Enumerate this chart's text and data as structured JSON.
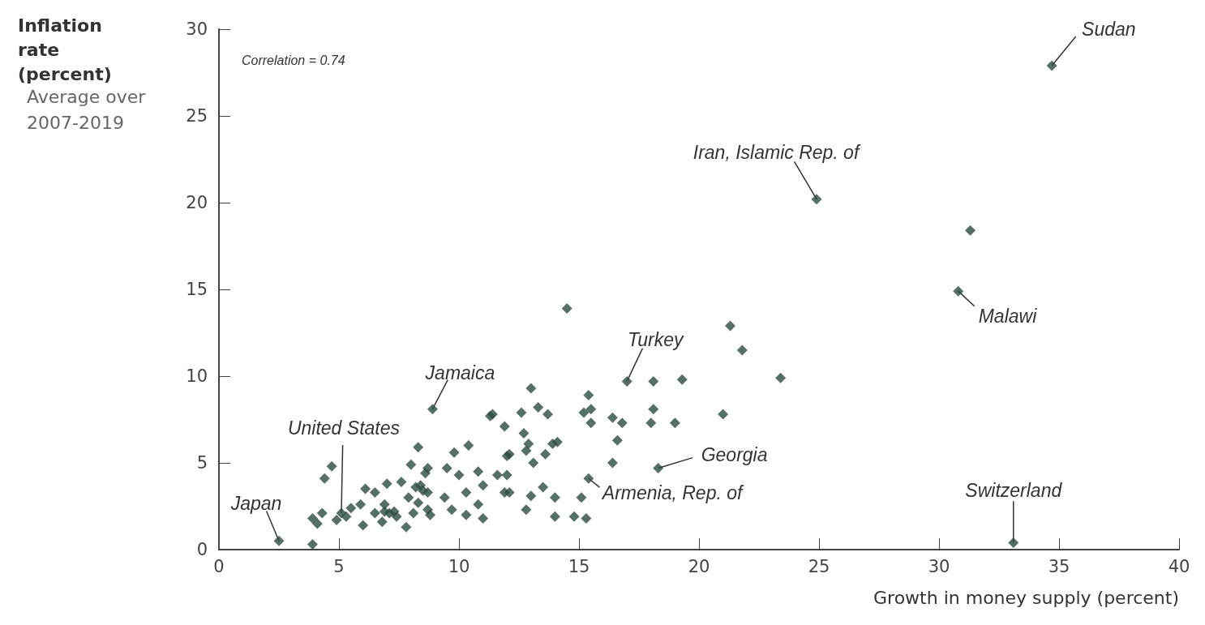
{
  "chart_data": {
    "type": "scatter",
    "subtitle": "Average over 2007-2019",
    "xlabel": "Growth in money supply (percent)",
    "ylabel": "Inflation rate (percent)",
    "xlim": [
      0,
      40
    ],
    "xticks": [
      0,
      5,
      10,
      15,
      20,
      25,
      30,
      35,
      40
    ],
    "ylim": [
      0,
      30
    ],
    "yticks": [
      0,
      5,
      10,
      15,
      20,
      25,
      30
    ],
    "grid": false,
    "marker": "diamond",
    "series": [
      {
        "color": "#2e4a43",
        "x": [
          2.5,
          3.9,
          3.9,
          4.1,
          4.3,
          4.4,
          4.7,
          4.9,
          5.1,
          5.3,
          5.5,
          5.9,
          6.1,
          6.0,
          6.5,
          6.5,
          6.8,
          6.9,
          7.1,
          7.4,
          7.0,
          7.6,
          7.8,
          7.9,
          8.0,
          8.3,
          8.1,
          8.4,
          8.6,
          8.7,
          8.9,
          8.7,
          9.8,
          10.4,
          11.3,
          11.9,
          9.5,
          10.0,
          10.8,
          11.6,
          12.0,
          12.0,
          11.9,
          10.3,
          11.0,
          10.8,
          10.3,
          11.0,
          9.7,
          9.4,
          8.8,
          8.7,
          8.3,
          8.2,
          6.9,
          7.3,
          8.5,
          14.5,
          17.0,
          18.1,
          19.3,
          21.3,
          21.8,
          15.4,
          15.5,
          15.2,
          15.5,
          16.4,
          16.8,
          16.6,
          16.4,
          18.1,
          18.0,
          19.0,
          21.0,
          18.3,
          15.4,
          15.1,
          14.0,
          14.8,
          15.3,
          14.0,
          13.5,
          13.0,
          12.8,
          12.1,
          12.1,
          11.4,
          12.6,
          13.0,
          13.3,
          13.7,
          12.7,
          12.9,
          12.8,
          13.6,
          13.9,
          14.1,
          13.1,
          24.9,
          34.7,
          31.3,
          30.8,
          33.1,
          23.4
        ],
        "values": [
          0.5,
          0.3,
          1.8,
          1.5,
          2.1,
          4.1,
          4.8,
          1.7,
          2.1,
          1.9,
          2.4,
          2.6,
          3.5,
          1.4,
          3.3,
          2.1,
          1.6,
          2.6,
          2.1,
          1.9,
          3.8,
          3.9,
          1.3,
          3.0,
          4.9,
          5.9,
          2.1,
          3.7,
          4.4,
          2.3,
          8.1,
          4.7,
          5.6,
          6.0,
          7.7,
          7.1,
          4.7,
          4.3,
          4.5,
          4.3,
          4.3,
          5.4,
          3.3,
          3.3,
          3.7,
          2.6,
          2.0,
          1.8,
          2.3,
          3.0,
          2.0,
          3.3,
          2.7,
          3.6,
          2.2,
          2.2,
          3.4,
          13.9,
          9.7,
          9.7,
          9.8,
          12.9,
          11.5,
          8.9,
          8.1,
          7.9,
          7.3,
          7.6,
          7.3,
          6.3,
          5.0,
          8.1,
          7.3,
          7.3,
          7.8,
          4.7,
          4.1,
          3.0,
          1.9,
          1.9,
          1.8,
          3.0,
          3.6,
          3.1,
          2.3,
          3.3,
          5.5,
          7.8,
          7.9,
          9.3,
          8.2,
          7.8,
          6.7,
          6.1,
          5.7,
          5.5,
          6.1,
          6.2,
          5.0,
          20.2,
          27.9,
          18.4,
          14.9,
          0.4,
          9.9
        ]
      }
    ],
    "annotations": [
      "Correlation = 0.74",
      {
        "text": "Sudan",
        "x": 34.7,
        "y": 27.9
      },
      {
        "text": "Iran, Islamic Rep. of",
        "x": 24.9,
        "y": 20.2
      },
      {
        "text": "Malawi",
        "x": 30.8,
        "y": 14.9
      },
      {
        "text": "Turkey",
        "x": 17.0,
        "y": 9.7
      },
      {
        "text": "Jamaica",
        "x": 8.9,
        "y": 8.1
      },
      {
        "text": "United States",
        "x": 5.1,
        "y": 2.1
      },
      {
        "text": "Georgia",
        "x": 18.3,
        "y": 4.7
      },
      {
        "text": "Japan",
        "x": 2.5,
        "y": 0.5
      },
      {
        "text": "Armenia, Rep. of",
        "x": 15.4,
        "y": 4.1
      },
      {
        "text": "Switzerland",
        "x": 33.1,
        "y": 0.4
      }
    ]
  }
}
